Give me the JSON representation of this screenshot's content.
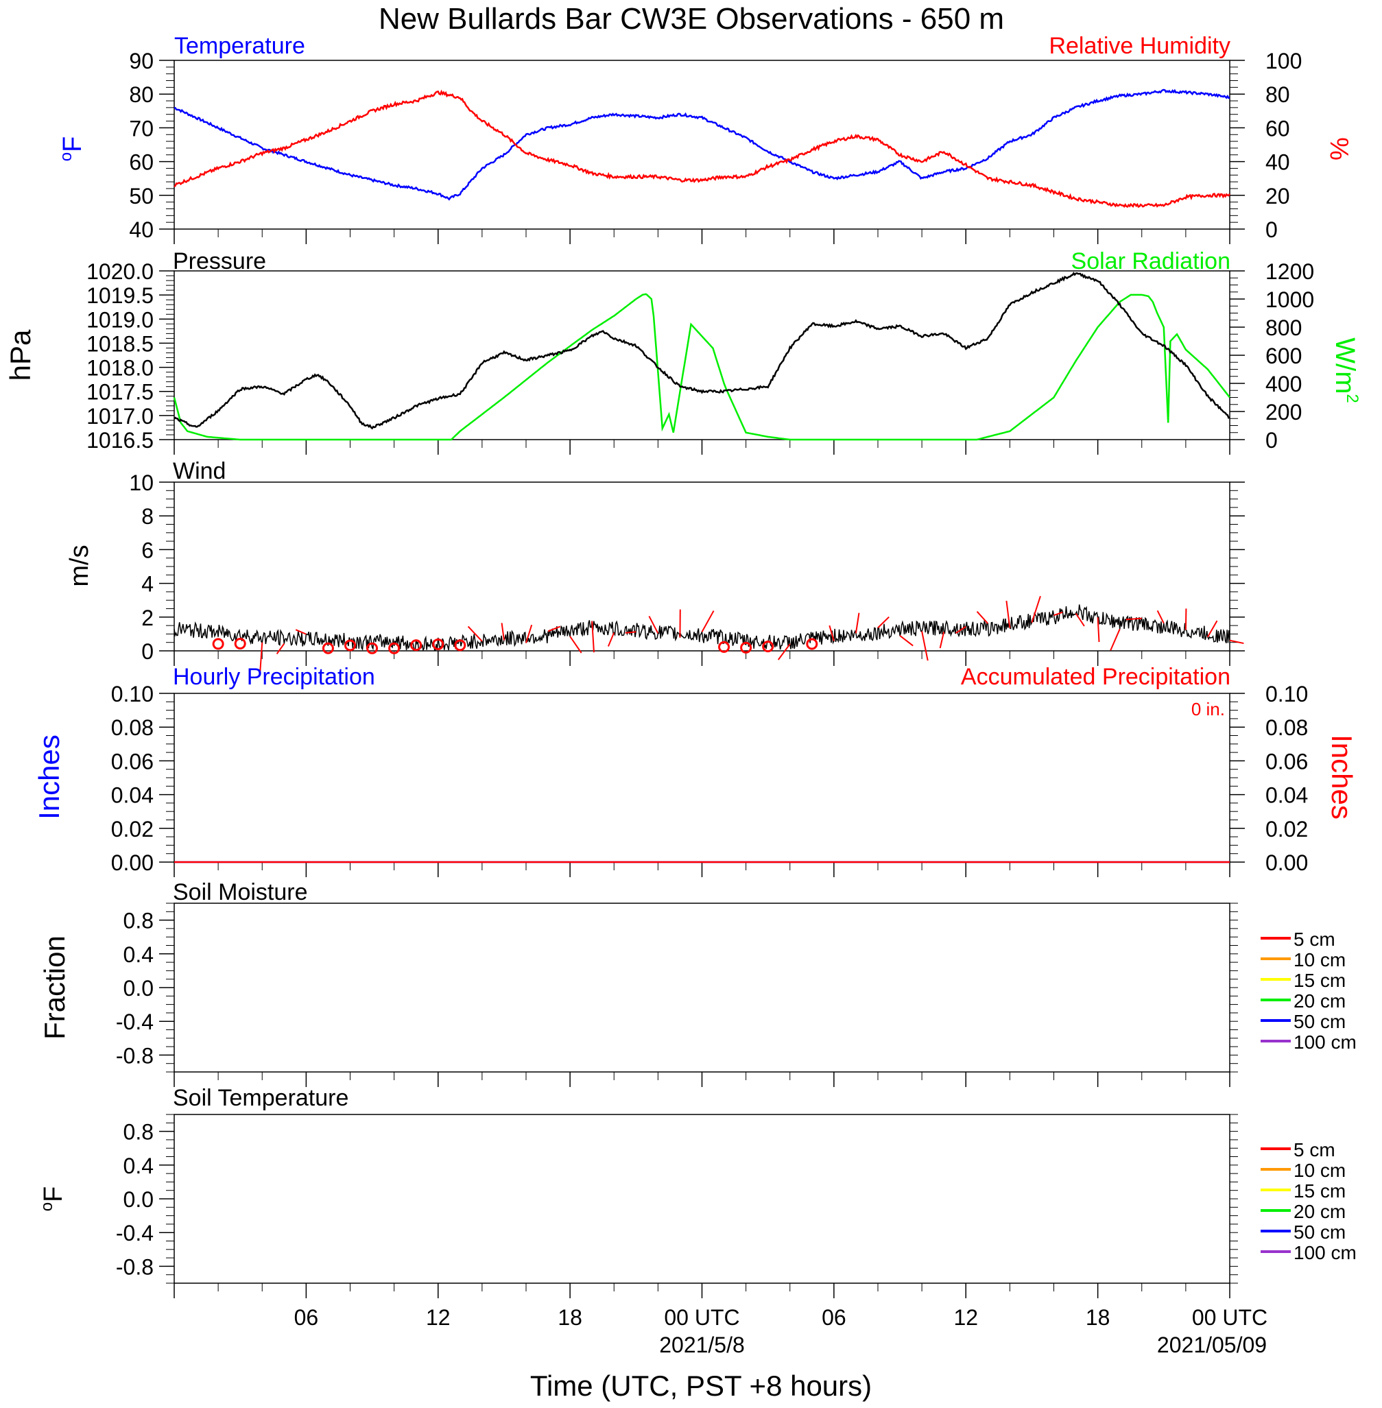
{
  "title": "New Bullards Bar CW3E Observations - 650 m",
  "xlabel": "Time (UTC, PST +8 hours)",
  "colors": {
    "temperature": "#0000ff",
    "humidity": "#ff0000",
    "pressure": "#000000",
    "solar": "#00ee00",
    "wind": "#000000",
    "wind_barb": "#ff0000",
    "hourly_precip": "#0000ff",
    "accum_precip": "#ff0000",
    "soil": [
      "#ff0000",
      "#ff9900",
      "#ffff00",
      "#00ee00",
      "#0000ff",
      "#9933cc"
    ]
  },
  "chart_data": [
    {
      "panel": "temperature_humidity",
      "type": "line",
      "title_left": "Temperature",
      "title_right": "Relative Humidity",
      "ylabel_left": "oF",
      "ylabel_right": "%",
      "ylim_left": [
        40,
        90
      ],
      "ylim_right": [
        0,
        100
      ],
      "yticks_left": [
        "40",
        "50",
        "60",
        "70",
        "80",
        "90"
      ],
      "yticks_right": [
        "0",
        "20",
        "40",
        "60",
        "80",
        "100"
      ],
      "xlim_hours": [
        0,
        48
      ],
      "series": [
        {
          "name": "Temperature",
          "axis": "left",
          "color": "#0000ff",
          "x": [
            0,
            1,
            2,
            3,
            4,
            5,
            6,
            7,
            8,
            9,
            10,
            11,
            12,
            12.5,
            13,
            14,
            15,
            16,
            17,
            18,
            19,
            20,
            21,
            22,
            23,
            24,
            25,
            26,
            27,
            28,
            29,
            30,
            31,
            32,
            33,
            34,
            35,
            36,
            37,
            38,
            39,
            40,
            41,
            42,
            43,
            44,
            45,
            46,
            47,
            48
          ],
          "y": [
            76,
            73,
            70,
            67,
            64,
            62,
            60,
            58,
            56,
            54.5,
            53,
            52,
            50.5,
            49,
            50.5,
            58,
            62,
            68,
            70,
            71,
            73,
            74,
            73.5,
            73,
            74,
            73,
            70,
            67,
            63,
            60,
            57,
            55,
            56,
            57,
            60,
            55,
            57,
            58,
            61,
            66,
            68,
            73,
            76,
            78,
            79.5,
            80,
            81,
            80.5,
            80,
            79
          ]
        },
        {
          "name": "Relative Humidity",
          "axis": "right",
          "color": "#ff0000",
          "x": [
            0,
            1,
            2,
            3,
            4,
            5,
            6,
            7,
            8,
            9,
            10,
            11,
            12,
            13,
            13.5,
            14,
            15,
            16,
            17,
            18,
            19,
            20,
            21,
            22,
            23,
            24,
            25,
            26,
            27,
            28,
            29,
            30,
            31,
            32,
            33,
            34,
            35,
            36,
            37,
            38,
            39,
            40,
            41,
            42,
            43,
            44,
            45,
            46,
            47,
            48
          ],
          "y": [
            26,
            31,
            36,
            40,
            45,
            48,
            53,
            58,
            64,
            70,
            74,
            76,
            81,
            78,
            70,
            64,
            56,
            45,
            41,
            38,
            33,
            31,
            31,
            31,
            29,
            29,
            31,
            31,
            37,
            41,
            47,
            52,
            55,
            53,
            44,
            40,
            46,
            38,
            30,
            28,
            26,
            22,
            18,
            16,
            14,
            14,
            14,
            19,
            20,
            20
          ]
        }
      ]
    },
    {
      "panel": "pressure_solar",
      "type": "line",
      "title_left": "Pressure",
      "title_right": "Solar Radiation",
      "ylabel_left": "hPa",
      "ylabel_right": "W/m2",
      "ylim_left": [
        1016.5,
        1020.0
      ],
      "ylim_right": [
        0,
        1200
      ],
      "yticks_left": [
        "1016.5",
        "1017.0",
        "1017.5",
        "1018.0",
        "1018.5",
        "1019.0",
        "1019.5",
        "1020.0"
      ],
      "yticks_right": [
        "0",
        "200",
        "400",
        "600",
        "800",
        "1000",
        "1200"
      ],
      "xlim_hours": [
        0,
        48
      ],
      "series": [
        {
          "name": "Pressure",
          "axis": "left",
          "color": "#000000",
          "x": [
            0,
            1,
            2,
            3,
            4,
            5,
            6,
            6.5,
            7,
            8,
            8.5,
            9,
            10,
            11,
            12,
            13,
            13.5,
            14,
            15,
            16,
            17,
            18,
            19,
            19.5,
            20,
            21,
            22,
            23,
            24,
            25,
            26,
            27,
            28,
            29,
            30,
            31,
            32,
            33,
            34,
            35,
            36,
            37,
            38,
            39,
            40,
            41,
            42,
            43,
            44,
            45,
            46,
            47,
            48
          ],
          "y": [
            1016.95,
            1016.75,
            1017.1,
            1017.55,
            1017.6,
            1017.45,
            1017.75,
            1017.85,
            1017.7,
            1017.2,
            1016.85,
            1016.75,
            1016.95,
            1017.2,
            1017.35,
            1017.45,
            1017.75,
            1018.1,
            1018.3,
            1018.15,
            1018.25,
            1018.35,
            1018.65,
            1018.75,
            1018.6,
            1018.45,
            1018.0,
            1017.6,
            1017.5,
            1017.5,
            1017.55,
            1017.6,
            1018.4,
            1018.9,
            1018.85,
            1018.95,
            1018.8,
            1018.85,
            1018.65,
            1018.7,
            1018.4,
            1018.6,
            1019.3,
            1019.55,
            1019.75,
            1019.95,
            1019.8,
            1019.3,
            1018.7,
            1018.45,
            1018.05,
            1017.4,
            1016.95
          ]
        },
        {
          "name": "Solar Radiation",
          "axis": "right",
          "color": "#00ee00",
          "x": [
            0,
            0.3,
            0.6,
            1.5,
            3,
            12,
            12.6,
            13,
            15,
            17,
            19,
            20,
            21,
            21.3,
            21.45,
            21.5,
            21.7,
            21.8,
            22.2,
            22.5,
            22.7,
            23.5,
            24.5,
            25,
            25.1,
            26,
            27,
            28,
            35,
            36,
            36.5,
            38,
            40,
            41,
            42,
            43,
            43.5,
            44,
            44.3,
            44.5,
            44.7,
            45,
            45.2,
            45.3,
            45.6,
            46,
            47,
            48
          ],
          "y": [
            300,
            120,
            60,
            20,
            0,
            0,
            0,
            60,
            300,
            550,
            780,
            880,
            1000,
            1030,
            1035,
            1030,
            1000,
            880,
            80,
            180,
            50,
            820,
            650,
            400,
            360,
            50,
            20,
            0,
            0,
            0,
            0,
            60,
            300,
            560,
            800,
            980,
            1030,
            1030,
            1020,
            980,
            900,
            800,
            120,
            700,
            750,
            640,
            500,
            300
          ]
        }
      ]
    },
    {
      "panel": "wind",
      "type": "line",
      "title_left": "Wind",
      "ylabel_left": "m/s",
      "ylim_left": [
        0,
        10
      ],
      "yticks_left": [
        "0",
        "2",
        "4",
        "6",
        "8",
        "10"
      ],
      "xlim_hours": [
        0,
        48
      ],
      "series": [
        {
          "name": "Wind speed",
          "axis": "left",
          "color": "#000000",
          "x": [
            0,
            2,
            4,
            6,
            8,
            9,
            10,
            11,
            12,
            13,
            14,
            15,
            16,
            17,
            18,
            19,
            20,
            21,
            22,
            23,
            24,
            25,
            26,
            27,
            28,
            29,
            30,
            31,
            32,
            33,
            34,
            35,
            36,
            37,
            38,
            39,
            40,
            41,
            42,
            43,
            44,
            45,
            46,
            47,
            48
          ],
          "y": [
            1.3,
            1.1,
            0.8,
            0.7,
            0.6,
            0.5,
            0.6,
            0.35,
            0.4,
            0.5,
            0.6,
            0.7,
            0.8,
            0.9,
            1.2,
            1.4,
            1.3,
            1.2,
            1.1,
            1.0,
            0.9,
            0.8,
            0.6,
            0.5,
            0.5,
            0.7,
            0.9,
            0.9,
            1.1,
            1.3,
            1.3,
            1.4,
            1.3,
            1.3,
            1.6,
            1.8,
            2.0,
            2.4,
            1.9,
            1.7,
            1.6,
            1.4,
            1.2,
            1.0,
            0.8
          ]
        }
      ],
      "calm_marks_hours": [
        2,
        3,
        7,
        8,
        9,
        10,
        11,
        12,
        13,
        25,
        26,
        27,
        29
      ]
    },
    {
      "panel": "precipitation",
      "type": "line",
      "title_left": "Hourly Precipitation",
      "title_right": "Accumulated Precipitation",
      "annotation": "0 in.",
      "ylabel_left": "Inches",
      "ylabel_right": "Inches",
      "ylim_left": [
        0,
        0.1
      ],
      "ylim_right": [
        0,
        0.1
      ],
      "yticks_left": [
        "0.00",
        "0.02",
        "0.04",
        "0.06",
        "0.08",
        "0.10"
      ],
      "yticks_right": [
        "0.00",
        "0.02",
        "0.04",
        "0.06",
        "0.08",
        "0.10"
      ],
      "xlim_hours": [
        0,
        48
      ],
      "series": [
        {
          "name": "Hourly Precipitation",
          "axis": "left",
          "color": "#0000ff",
          "x": [
            0,
            48
          ],
          "y": [
            0,
            0
          ]
        },
        {
          "name": "Accumulated Precipitation",
          "axis": "right",
          "color": "#ff0000",
          "x": [
            0,
            48
          ],
          "y": [
            0,
            0
          ]
        }
      ]
    },
    {
      "panel": "soil_moisture",
      "type": "line",
      "title_left": "Soil Moisture",
      "ylabel_left": "Fraction",
      "ylim_left": [
        -1,
        1
      ],
      "yticks_left": [
        "-0.8",
        "-0.4",
        "0.0",
        "0.4",
        "0.8"
      ],
      "legend": [
        "5 cm",
        "10 cm",
        "15 cm",
        "20 cm",
        "50 cm",
        "100 cm"
      ],
      "series": []
    },
    {
      "panel": "soil_temperature",
      "type": "line",
      "title_left": "Soil Temperature",
      "ylabel_left": "oF",
      "ylim_left": [
        -1,
        1
      ],
      "yticks_left": [
        "-0.8",
        "-0.4",
        "0.0",
        "0.4",
        "0.8"
      ],
      "legend": [
        "5 cm",
        "10 cm",
        "15 cm",
        "20 cm",
        "50 cm",
        "100 cm"
      ],
      "series": []
    }
  ],
  "xaxis": {
    "tick_labels": [
      "06",
      "12",
      "18",
      "00 UTC",
      "06",
      "12",
      "18",
      "00 UTC"
    ],
    "tick_hours": [
      6,
      12,
      18,
      24,
      30,
      36,
      42,
      48
    ],
    "date_labels": [
      "2021/5/8",
      "2021/05/09"
    ],
    "date_hours": [
      24,
      48
    ]
  }
}
